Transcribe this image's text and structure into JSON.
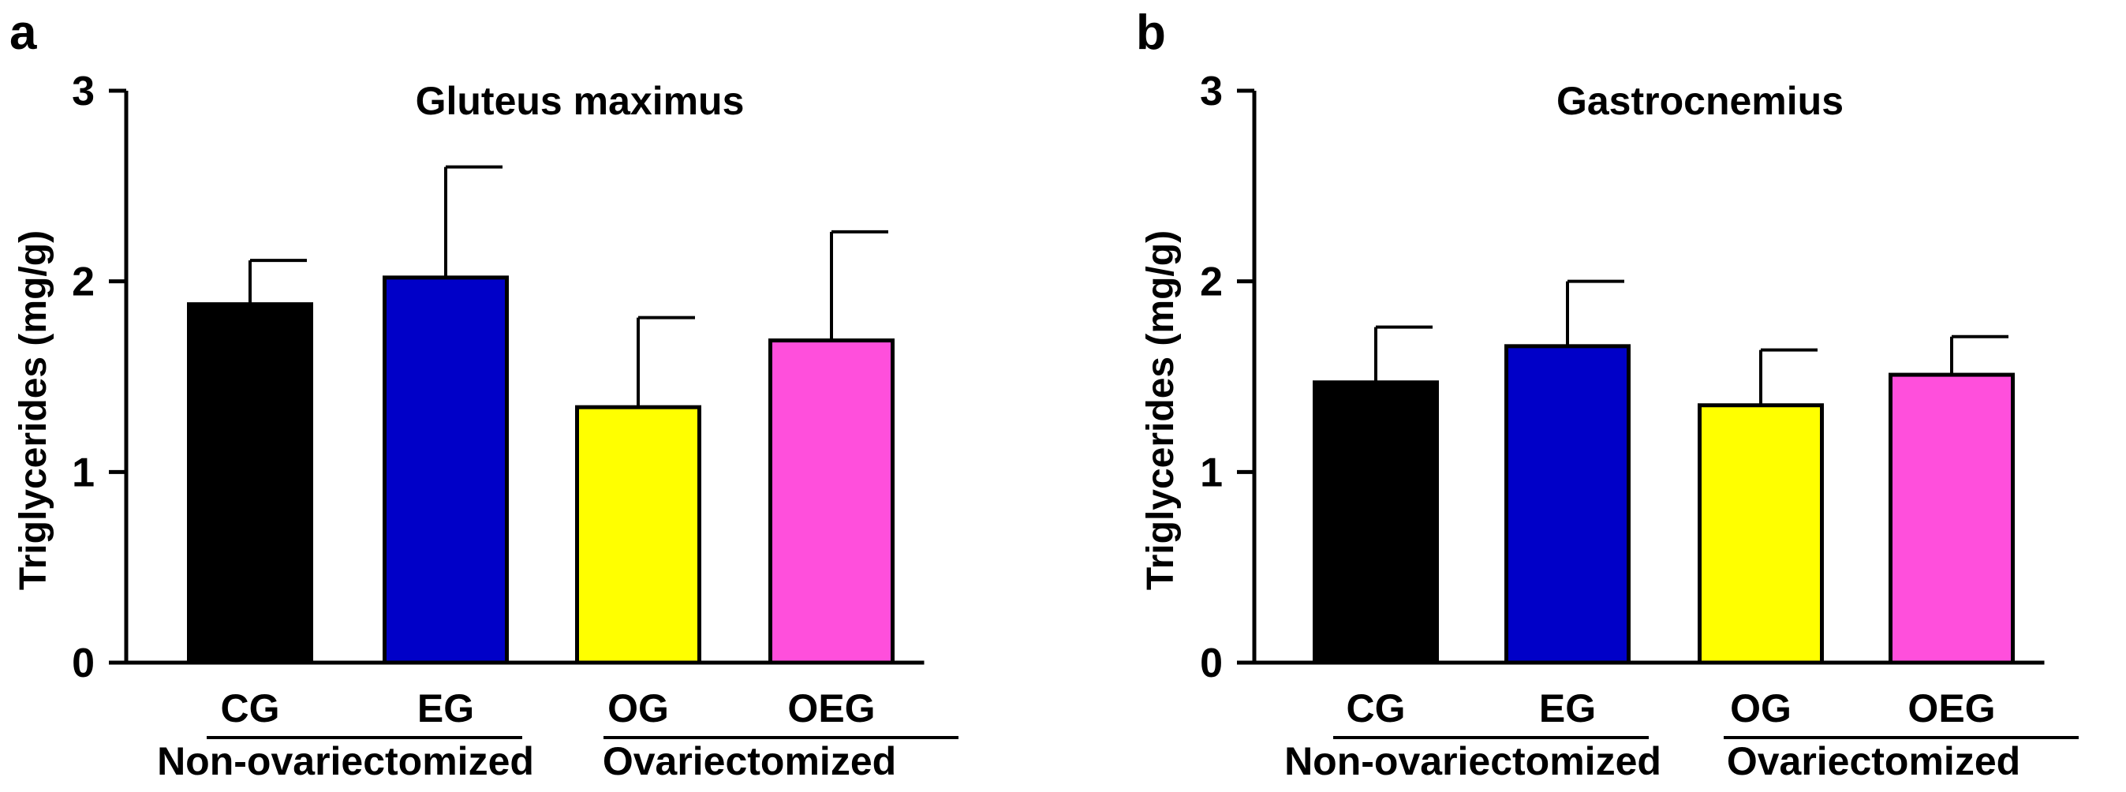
{
  "chart_data": [
    {
      "panel": "a",
      "type": "bar",
      "title": "Gluteus maximus",
      "ylabel": "Triglycerides (mg/g)",
      "xlabel": "",
      "ylim": [
        0,
        3
      ],
      "yticks": [
        0,
        1,
        2,
        3
      ],
      "categories": [
        "CG",
        "EG",
        "OG",
        "OEG"
      ],
      "values": [
        1.88,
        2.02,
        1.34,
        1.69
      ],
      "errors": [
        0.23,
        0.58,
        0.47,
        0.57
      ],
      "colors": [
        "#000000",
        "#0000c8",
        "#ffff00",
        "#ff4fdc"
      ],
      "groups": [
        {
          "label": "Non-ovariectomized",
          "categories": [
            "CG",
            "EG"
          ]
        },
        {
          "label": "Ovariectomized",
          "categories": [
            "OG",
            "OEG"
          ]
        }
      ]
    },
    {
      "panel": "b",
      "type": "bar",
      "title": "Gastrocnemius",
      "ylabel": "Triglycerides (mg/g)",
      "xlabel": "",
      "ylim": [
        0,
        3
      ],
      "yticks": [
        0,
        1,
        2,
        3
      ],
      "categories": [
        "CG",
        "EG",
        "OG",
        "OEG"
      ],
      "values": [
        1.47,
        1.66,
        1.35,
        1.51
      ],
      "errors": [
        0.29,
        0.34,
        0.29,
        0.2
      ],
      "colors": [
        "#000000",
        "#0000c8",
        "#ffff00",
        "#ff4fdc"
      ],
      "groups": [
        {
          "label": "Non-ovariectomized",
          "categories": [
            "CG",
            "EG"
          ]
        },
        {
          "label": "Ovariectomized",
          "categories": [
            "OG",
            "OEG"
          ]
        }
      ]
    }
  ]
}
